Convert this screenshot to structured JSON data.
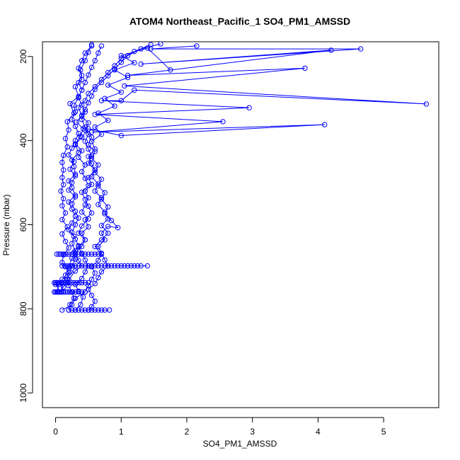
{
  "chart_data": {
    "type": "line",
    "title": "ATOM4 Northeast_Pacific_1 SO4_PM1_AMSSD",
    "xlabel": "SO4_PM1_AMSSD",
    "ylabel": "Pressure (mbar)",
    "xlim": [
      -0.2,
      5.84
    ],
    "ylim": [
      1035,
      165
    ],
    "y_reversed": true,
    "x_ticks": [
      0,
      1,
      2,
      3,
      4,
      5
    ],
    "x_tick_labels": [
      "0",
      "1",
      "2",
      "3",
      "4",
      "5"
    ],
    "y_ticks": [
      200,
      400,
      600,
      800,
      1000
    ],
    "y_tick_labels": [
      "200",
      "400",
      "600",
      "800",
      "1000"
    ],
    "grid": false,
    "color": "#0000ff",
    "series": [
      {
        "points": [
          [
            0.02,
            760
          ],
          [
            0.05,
            742
          ],
          [
            0.1,
            730
          ],
          [
            0.2,
            715
          ],
          [
            0.15,
            700
          ],
          [
            0.1,
            690
          ],
          [
            0.12,
            672
          ],
          [
            0.2,
            655
          ],
          [
            0.15,
            640
          ],
          [
            0.1,
            622
          ],
          [
            0.18,
            605
          ],
          [
            0.1,
            588
          ],
          [
            0.15,
            572
          ],
          [
            0.1,
            555
          ],
          [
            0.12,
            538
          ],
          [
            0.08,
            520
          ],
          [
            0.12,
            505
          ],
          [
            0.1,
            488
          ],
          [
            0.12,
            470
          ],
          [
            0.1,
            452
          ],
          [
            0.12,
            435
          ],
          [
            0.18,
            415
          ],
          [
            0.15,
            395
          ],
          [
            0.2,
            375
          ],
          [
            0.18,
            355
          ],
          [
            0.28,
            335
          ],
          [
            0.22,
            312
          ],
          [
            0.35,
            295
          ],
          [
            0.3,
            272
          ],
          [
            0.4,
            255
          ],
          [
            0.38,
            232
          ],
          [
            0.45,
            210
          ],
          [
            0.5,
            190
          ],
          [
            0.55,
            172
          ]
        ]
      },
      {
        "points": [
          [
            0.0,
            742
          ],
          [
            0.08,
            760
          ],
          [
            0.15,
            720
          ],
          [
            0.2,
            700
          ],
          [
            0.25,
            680
          ],
          [
            0.3,
            662
          ],
          [
            0.25,
            645
          ],
          [
            0.28,
            628
          ],
          [
            0.2,
            612
          ],
          [
            0.25,
            596
          ],
          [
            0.3,
            580
          ],
          [
            0.25,
            563
          ],
          [
            0.2,
            546
          ],
          [
            0.3,
            530
          ],
          [
            0.25,
            512
          ],
          [
            0.2,
            496
          ],
          [
            0.3,
            480
          ],
          [
            0.28,
            462
          ],
          [
            0.25,
            446
          ],
          [
            0.35,
            428
          ],
          [
            0.3,
            410
          ],
          [
            0.4,
            392
          ],
          [
            0.5,
            372
          ],
          [
            1.0,
            388
          ],
          [
            4.1,
            362
          ],
          [
            0.55,
            380
          ],
          [
            2.55,
            355
          ],
          [
            0.6,
            338
          ],
          [
            2.95,
            322
          ],
          [
            0.7,
            305
          ],
          [
            1.0,
            305
          ],
          [
            1.2,
            280
          ],
          [
            5.65,
            313
          ],
          [
            1.05,
            270
          ],
          [
            3.8,
            228
          ],
          [
            1.1,
            245
          ],
          [
            4.2,
            185
          ],
          [
            1.3,
            218
          ],
          [
            4.65,
            182
          ],
          [
            1.45,
            182
          ],
          [
            2.15,
            175
          ]
        ]
      },
      {
        "points": [
          [
            0.05,
            760
          ],
          [
            0.12,
            748
          ],
          [
            0.2,
            730
          ],
          [
            0.3,
            710
          ],
          [
            0.4,
            698
          ],
          [
            0.35,
            685
          ],
          [
            0.3,
            668
          ],
          [
            0.4,
            652
          ],
          [
            0.45,
            636
          ],
          [
            0.35,
            620
          ],
          [
            0.4,
            603
          ],
          [
            0.5,
            586
          ],
          [
            0.4,
            570
          ],
          [
            0.45,
            553
          ],
          [
            0.5,
            536
          ],
          [
            0.45,
            520
          ],
          [
            0.55,
            504
          ],
          [
            0.5,
            488
          ],
          [
            0.6,
            470
          ],
          [
            0.55,
            455
          ],
          [
            0.5,
            438
          ],
          [
            0.6,
            420
          ],
          [
            0.55,
            402
          ],
          [
            0.7,
            385
          ],
          [
            0.6,
            368
          ],
          [
            0.8,
            352
          ],
          [
            0.65,
            335
          ],
          [
            0.9,
            318
          ],
          [
            0.75,
            300
          ],
          [
            1.0,
            285
          ],
          [
            0.8,
            268
          ],
          [
            1.1,
            250
          ],
          [
            0.9,
            232
          ],
          [
            1.2,
            215
          ],
          [
            1.0,
            198
          ],
          [
            1.4,
            180
          ],
          [
            1.75,
            232
          ]
        ]
      },
      {
        "points": [
          [
            0.1,
            803
          ],
          [
            0.25,
            790
          ],
          [
            0.3,
            775
          ],
          [
            0.45,
            760
          ],
          [
            0.5,
            745
          ],
          [
            0.55,
            730
          ],
          [
            0.6,
            715
          ],
          [
            0.55,
            700
          ],
          [
            0.65,
            685
          ],
          [
            0.7,
            670
          ],
          [
            0.6,
            652
          ],
          [
            0.7,
            636
          ],
          [
            0.8,
            620
          ],
          [
            0.7,
            602
          ],
          [
            0.8,
            586
          ],
          [
            0.75,
            570
          ],
          [
            0.65,
            552
          ],
          [
            0.7,
            536
          ],
          [
            0.6,
            520
          ],
          [
            0.65,
            503
          ],
          [
            0.55,
            486
          ],
          [
            0.6,
            470
          ],
          [
            0.5,
            454
          ],
          [
            0.55,
            437
          ],
          [
            0.5,
            420
          ],
          [
            0.45,
            402
          ],
          [
            0.5,
            385
          ],
          [
            0.45,
            368
          ],
          [
            0.4,
            350
          ],
          [
            0.45,
            332
          ],
          [
            0.4,
            315
          ],
          [
            0.35,
            298
          ],
          [
            0.4,
            280
          ],
          [
            0.35,
            262
          ],
          [
            0.4,
            245
          ],
          [
            0.35,
            228
          ],
          [
            0.4,
            210
          ],
          [
            0.45,
            192
          ],
          [
            0.55,
            175
          ]
        ]
      },
      {
        "points": [
          [
            0.2,
            803
          ],
          [
            0.22,
            790
          ],
          [
            0.28,
            775
          ],
          [
            0.25,
            760
          ],
          [
            0.2,
            745
          ],
          [
            0.18,
            730
          ],
          [
            0.22,
            712
          ],
          [
            0.25,
            698
          ],
          [
            0.3,
            682
          ],
          [
            0.28,
            666
          ],
          [
            0.35,
            650
          ],
          [
            0.3,
            634
          ],
          [
            0.25,
            618
          ],
          [
            0.3,
            600
          ],
          [
            0.35,
            584
          ],
          [
            0.3,
            568
          ],
          [
            0.25,
            550
          ],
          [
            0.3,
            534
          ],
          [
            0.2,
            518
          ],
          [
            0.25,
            500
          ],
          [
            0.3,
            484
          ],
          [
            0.22,
            468
          ],
          [
            0.28,
            450
          ],
          [
            0.2,
            434
          ],
          [
            0.25,
            418
          ],
          [
            0.3,
            400
          ],
          [
            0.35,
            383
          ],
          [
            0.3,
            366
          ],
          [
            0.25,
            350
          ],
          [
            0.3,
            332
          ],
          [
            0.28,
            316
          ],
          [
            0.35,
            298
          ],
          [
            0.4,
            280
          ],
          [
            0.45,
            262
          ],
          [
            0.5,
            244
          ],
          [
            0.55,
            226
          ],
          [
            0.6,
            210
          ],
          [
            0.65,
            192
          ],
          [
            0.7,
            175
          ]
        ]
      },
      {
        "points": [
          [
            0.3,
            803
          ],
          [
            0.38,
            790
          ],
          [
            0.42,
            772
          ],
          [
            0.35,
            758
          ],
          [
            0.3,
            742
          ],
          [
            0.4,
            728
          ],
          [
            0.45,
            712
          ],
          [
            0.5,
            698
          ],
          [
            0.45,
            684
          ],
          [
            0.4,
            668
          ],
          [
            0.35,
            652
          ],
          [
            0.45,
            636
          ],
          [
            0.4,
            620
          ],
          [
            0.5,
            605
          ],
          [
            0.45,
            588
          ],
          [
            0.55,
            572
          ],
          [
            0.5,
            556
          ],
          [
            0.45,
            540
          ],
          [
            0.4,
            523
          ],
          [
            0.5,
            507
          ],
          [
            0.45,
            490
          ],
          [
            0.4,
            474
          ],
          [
            0.45,
            458
          ],
          [
            0.35,
            440
          ],
          [
            0.4,
            424
          ],
          [
            0.3,
            408
          ],
          [
            0.38,
            390
          ],
          [
            0.42,
            372
          ],
          [
            0.32,
            356
          ],
          [
            0.4,
            340
          ],
          [
            0.35,
            322
          ],
          [
            0.45,
            305
          ],
          [
            0.5,
            288
          ],
          [
            0.6,
            272
          ],
          [
            0.7,
            255
          ],
          [
            0.8,
            238
          ],
          [
            0.9,
            222
          ],
          [
            1.0,
            205
          ],
          [
            1.2,
            188
          ],
          [
            1.45,
            172
          ]
        ]
      },
      {
        "points": [
          [
            0.5,
            803
          ],
          [
            0.55,
            795
          ],
          [
            0.6,
            782
          ],
          [
            0.55,
            768
          ],
          [
            0.5,
            754
          ],
          [
            0.6,
            740
          ],
          [
            0.65,
            726
          ],
          [
            0.7,
            712
          ],
          [
            0.8,
            698
          ],
          [
            0.75,
            684
          ],
          [
            0.7,
            668
          ],
          [
            0.65,
            652
          ],
          [
            0.75,
            636
          ],
          [
            0.7,
            620
          ],
          [
            0.8,
            604
          ],
          [
            0.95,
            607
          ],
          [
            0.85,
            590
          ],
          [
            0.75,
            574
          ],
          [
            0.8,
            558
          ],
          [
            0.7,
            540
          ],
          [
            0.75,
            524
          ],
          [
            0.65,
            508
          ],
          [
            0.7,
            492
          ],
          [
            0.6,
            476
          ],
          [
            0.65,
            458
          ],
          [
            0.55,
            442
          ],
          [
            0.6,
            426
          ],
          [
            0.5,
            410
          ],
          [
            0.55,
            392
          ],
          [
            0.45,
            375
          ],
          [
            0.5,
            358
          ],
          [
            0.4,
            342
          ],
          [
            0.45,
            326
          ],
          [
            0.5,
            310
          ],
          [
            0.55,
            294
          ],
          [
            0.6,
            278
          ],
          [
            0.7,
            262
          ],
          [
            0.8,
            246
          ],
          [
            0.9,
            230
          ],
          [
            1.0,
            214
          ],
          [
            1.1,
            198
          ],
          [
            1.3,
            182
          ],
          [
            1.6,
            170
          ]
        ]
      }
    ],
    "bands": [
      {
        "pressure": 670,
        "x": [
          0.02,
          0.05,
          0.08,
          0.12,
          0.16,
          0.2,
          0.25,
          0.3,
          0.35,
          0.4,
          0.45,
          0.5,
          0.55,
          0.6,
          0.65,
          0.7
        ]
      },
      {
        "pressure": 698,
        "x": [
          0.1,
          0.14,
          0.18,
          0.22,
          0.26,
          0.3,
          0.35,
          0.4,
          0.45,
          0.5,
          0.55,
          0.6,
          0.65,
          0.7,
          0.75,
          0.8,
          0.85,
          0.9,
          0.95,
          1.0,
          1.05,
          1.1,
          1.15,
          1.2,
          1.25,
          1.3,
          1.4
        ]
      },
      {
        "pressure": 738,
        "x": [
          -0.02,
          0.0,
          0.02,
          0.04,
          0.06,
          0.08,
          0.1,
          0.12,
          0.15,
          0.18,
          0.2,
          0.24,
          0.28,
          0.32,
          0.36,
          0.4,
          0.45,
          0.5
        ]
      },
      {
        "pressure": 760,
        "x": [
          -0.02,
          0.0,
          0.03,
          0.06,
          0.09,
          0.12,
          0.15,
          0.18,
          0.22,
          0.26,
          0.3,
          0.35,
          0.4,
          0.45
        ]
      },
      {
        "pressure": 803,
        "x": [
          0.2,
          0.25,
          0.3,
          0.35,
          0.4,
          0.45,
          0.5,
          0.55,
          0.6,
          0.65,
          0.7,
          0.75,
          0.82
        ]
      }
    ]
  }
}
